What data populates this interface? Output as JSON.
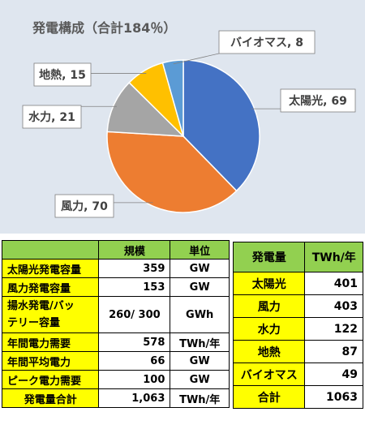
{
  "chart_data": {
    "type": "pie",
    "title": "発電構成（合計184％）",
    "categories": [
      "太陽光",
      "風力",
      "水力",
      "地熱",
      "バイオマス"
    ],
    "values": [
      69,
      70,
      21,
      15,
      8
    ],
    "colors": [
      "#4472c4",
      "#ed7d31",
      "#a5a5a5",
      "#ffc000",
      "#5b9bd5"
    ],
    "labels": [
      "太陽光, 69",
      "風力, 70",
      "水力, 21",
      "地熱, 15",
      "バイオマス, 8"
    ],
    "start_angle_deg": 0,
    "direction": "clockwise",
    "legend": "none (data labels in callouts)"
  },
  "capacity_table": {
    "headers": [
      "",
      "規模",
      "単位"
    ],
    "rows": [
      {
        "name": "太陽光発電容量",
        "value": "359",
        "unit": "GW"
      },
      {
        "name": "風力発電容量",
        "value": "153",
        "unit": "GW"
      },
      {
        "name_line1": "揚水発電/バッ",
        "name_line2": "テリー容量",
        "value": "260/ 300",
        "unit": "GWh"
      },
      {
        "name": "年間電力需要",
        "value": "578",
        "unit": "TWh/年"
      },
      {
        "name": "年間平均電力",
        "value": "66",
        "unit": "GW"
      },
      {
        "name": "ピーク電力需要",
        "value": "100",
        "unit": "GW"
      },
      {
        "name": "発電量合計",
        "value": "1,063",
        "unit": "TWh/年"
      }
    ]
  },
  "generation_table": {
    "headers": [
      "発電量",
      "TWh/年"
    ],
    "rows": [
      {
        "name": "太陽光",
        "value": "401"
      },
      {
        "name": "風力",
        "value": "403"
      },
      {
        "name": "水力",
        "value": "122"
      },
      {
        "name": "地熱",
        "value": "87"
      },
      {
        "name": "バイオマス",
        "value": "49"
      },
      {
        "name": "合計",
        "value": "1063"
      }
    ]
  }
}
